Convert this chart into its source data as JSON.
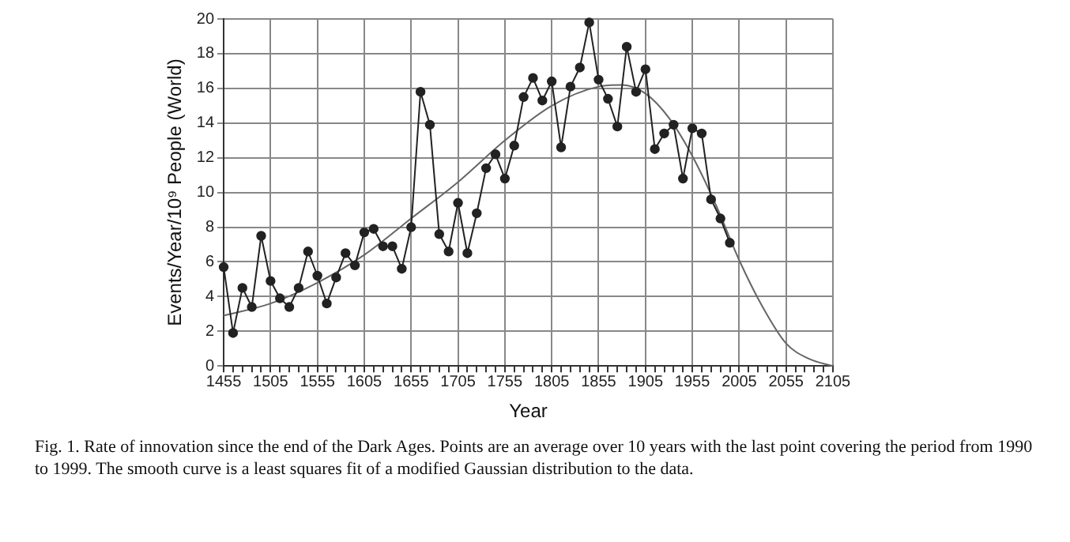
{
  "chart_data": {
    "type": "line",
    "xlabel": "Year",
    "ylabel": "Events/Year/10⁹ People (World)",
    "annotations": [
      "Fig. 1. Rate of innovation since the end of the Dark Ages. Points are an average over 10 years with the last point covering the period from 1990 to 1999. The smooth curve is a least squares fit of a modified Gaussian distribution to the data."
    ],
    "xlim": [
      1455,
      2105
    ],
    "xticks": [
      1455,
      {
        "value": 1465,
        "label": null
      },
      {
        "value": 1475,
        "label": null
      },
      {
        "value": 1485,
        "label": null
      },
      {
        "value": 1495,
        "label": null
      },
      1505,
      {
        "value": 1515,
        "label": null
      },
      {
        "value": 1525,
        "label": null
      },
      {
        "value": 1535,
        "label": null
      },
      {
        "value": 1545,
        "label": null
      },
      1555,
      {
        "value": 1565,
        "label": null
      },
      {
        "value": 1575,
        "label": null
      },
      {
        "value": 1585,
        "label": null
      },
      {
        "value": 1595,
        "label": null
      },
      1605,
      {
        "value": 1615,
        "label": null
      },
      {
        "value": 1625,
        "label": null
      },
      {
        "value": 1635,
        "label": null
      },
      {
        "value": 1645,
        "label": null
      },
      1655,
      {
        "value": 1665,
        "label": null
      },
      {
        "value": 1675,
        "label": null
      },
      {
        "value": 1685,
        "label": null
      },
      {
        "value": 1695,
        "label": null
      },
      1705,
      {
        "value": 1715,
        "label": null
      },
      {
        "value": 1725,
        "label": null
      },
      {
        "value": 1735,
        "label": null
      },
      {
        "value": 1745,
        "label": null
      },
      1755,
      {
        "value": 1765,
        "label": null
      },
      {
        "value": 1775,
        "label": null
      },
      {
        "value": 1785,
        "label": null
      },
      {
        "value": 1795,
        "label": null
      },
      1805,
      {
        "value": 1815,
        "label": null
      },
      {
        "value": 1825,
        "label": null
      },
      {
        "value": 1835,
        "label": null
      },
      {
        "value": 1845,
        "label": null
      },
      1855,
      {
        "value": 1865,
        "label": null
      },
      {
        "value": 1875,
        "label": null
      },
      {
        "value": 1885,
        "label": null
      },
      {
        "value": 1895,
        "label": null
      },
      1905,
      {
        "value": 1915,
        "label": null
      },
      {
        "value": 1925,
        "label": null
      },
      {
        "value": 1935,
        "label": null
      },
      {
        "value": 1945,
        "label": null
      },
      1955,
      {
        "value": 1965,
        "label": null
      },
      {
        "value": 1975,
        "label": null
      },
      {
        "value": 1985,
        "label": null
      },
      {
        "value": 1995,
        "label": null
      },
      2005,
      {
        "value": 2015,
        "label": null
      },
      {
        "value": 2025,
        "label": null
      },
      {
        "value": 2035,
        "label": null
      },
      {
        "value": 2045,
        "label": null
      },
      2055,
      {
        "value": 2065,
        "label": null
      },
      {
        "value": 2075,
        "label": null
      },
      {
        "value": 2085,
        "label": null
      },
      {
        "value": 2095,
        "label": null
      },
      2105
    ],
    "ylim": [
      0,
      20
    ],
    "yticks": [
      0,
      2,
      4,
      6,
      8,
      10,
      12,
      14,
      16,
      18,
      20
    ],
    "grid": true,
    "legend": false,
    "marker": "circle",
    "line_style": "solid",
    "series": [
      {
        "color": "#222222",
        "x": [
          1455,
          1465,
          1475,
          1485,
          1495,
          1505,
          1515,
          1525,
          1535,
          1545,
          1555,
          1565,
          1575,
          1585,
          1595,
          1605,
          1615,
          1625,
          1635,
          1645,
          1655,
          1665,
          1675,
          1685,
          1695,
          1705,
          1715,
          1725,
          1735,
          1745,
          1755,
          1765,
          1775,
          1785,
          1795,
          1805,
          1815,
          1825,
          1835,
          1845,
          1855,
          1865,
          1875,
          1885,
          1895,
          1905,
          1915,
          1925,
          1935,
          1945,
          1955,
          1965,
          1975,
          1985,
          1995
        ],
        "values": [
          5.7,
          1.9,
          4.5,
          3.4,
          7.5,
          4.9,
          3.9,
          3.4,
          4.5,
          6.6,
          5.2,
          3.6,
          5.1,
          6.5,
          5.8,
          7.7,
          7.9,
          6.9,
          6.9,
          5.6,
          8.0,
          15.8,
          13.9,
          7.6,
          6.6,
          9.4,
          6.5,
          8.8,
          11.4,
          12.2,
          10.8,
          12.7,
          15.5,
          16.6,
          15.3,
          16.4,
          12.6,
          16.1,
          17.2,
          19.8,
          16.5,
          15.4,
          13.8,
          18.4,
          15.8,
          17.1,
          12.5,
          13.4,
          13.9,
          10.8,
          13.7,
          13.4,
          9.6,
          8.5,
          7.1
        ]
      },
      {
        "type": "line",
        "color": "#666666",
        "marker": "none",
        "x": [
          1455,
          1505,
          1555,
          1605,
          1655,
          1705,
          1755,
          1805,
          1855,
          1880,
          1905,
          1930,
          1955,
          1980,
          2005,
          2030,
          2055,
          2080,
          2105
        ],
        "values": [
          2.9,
          3.6,
          4.8,
          6.4,
          8.5,
          10.6,
          13.0,
          15.0,
          16.1,
          16.2,
          15.7,
          14.3,
          12.1,
          9.3,
          6.1,
          3.4,
          1.3,
          0.4,
          0
        ]
      }
    ]
  }
}
